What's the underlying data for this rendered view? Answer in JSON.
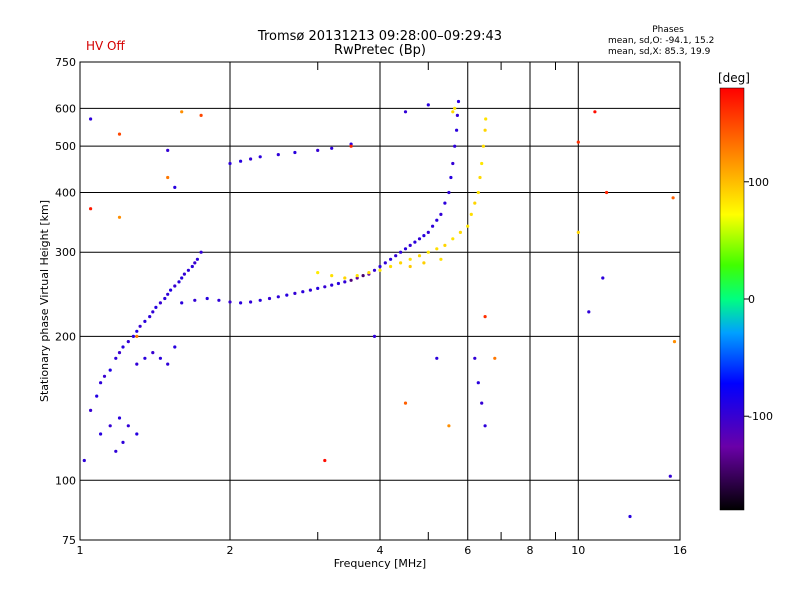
{
  "header": {
    "title_line1": "Tromsø 20131213 09:28:00–09:29:43",
    "title_line2": "RwPretec (Bp)",
    "hv_status": "HV Off",
    "hv_color": "#d40000"
  },
  "stats": {
    "heading": "Phases",
    "line_o": "mean, sd,O: -94.1, 15.2",
    "line_x": "mean, sd,X:  85.3, 19.9"
  },
  "colorbar": {
    "label": "[deg]",
    "min": -180,
    "max": 180,
    "ticks": [
      100,
      0,
      -100
    ]
  },
  "chart_data": {
    "type": "scatter",
    "title": "Tromsø 20131213 09:28:00–09:29:43",
    "subtitle": "RwPretec (Bp)",
    "xlabel": "Frequency [MHz]",
    "ylabel": "Stationary phase Virtual Height [km]",
    "xscale": "log",
    "yscale": "log",
    "xlim": [
      1,
      16
    ],
    "ylim": [
      75,
      750
    ],
    "x_ticks": [
      1,
      2,
      4,
      6,
      8,
      10,
      16
    ],
    "x_minor_ticks": [
      3,
      5,
      7,
      9
    ],
    "y_ticks": [
      75,
      100,
      200,
      300,
      400,
      500,
      600,
      750
    ],
    "grid": true,
    "color_by": "phase",
    "series": [
      {
        "points": [
          [
            1.02,
            110,
            -95
          ],
          [
            1.05,
            140,
            -100
          ],
          [
            1.08,
            150,
            -90
          ],
          [
            1.1,
            160,
            -95
          ],
          [
            1.12,
            165,
            -100
          ],
          [
            1.15,
            170,
            -88
          ],
          [
            1.18,
            180,
            -95
          ],
          [
            1.2,
            185,
            -102
          ],
          [
            1.22,
            190,
            -92
          ],
          [
            1.25,
            195,
            -98
          ],
          [
            1.28,
            200,
            -94
          ],
          [
            1.3,
            205,
            -90
          ],
          [
            1.32,
            210,
            -100
          ],
          [
            1.35,
            215,
            -94
          ],
          [
            1.38,
            220,
            -95
          ],
          [
            1.4,
            225,
            -97
          ],
          [
            1.42,
            230,
            -91
          ],
          [
            1.45,
            235,
            -99
          ],
          [
            1.48,
            240,
            -93
          ],
          [
            1.5,
            245,
            -96
          ],
          [
            1.52,
            250,
            -90
          ],
          [
            1.55,
            255,
            -100
          ],
          [
            1.58,
            260,
            -94
          ],
          [
            1.6,
            265,
            -92
          ],
          [
            1.62,
            270,
            -98
          ],
          [
            1.65,
            275,
            -95
          ],
          [
            1.68,
            280,
            -93
          ],
          [
            1.7,
            285,
            -101
          ],
          [
            1.72,
            290,
            -94
          ],
          [
            1.75,
            300,
            -97
          ],
          [
            1.1,
            125,
            -92
          ],
          [
            1.15,
            130,
            -99
          ],
          [
            1.2,
            135,
            -93
          ],
          [
            1.25,
            130,
            -97
          ],
          [
            1.3,
            125,
            -91
          ],
          [
            1.18,
            115,
            -96
          ],
          [
            1.22,
            120,
            -95
          ],
          [
            1.3,
            175,
            -97
          ],
          [
            1.35,
            180,
            -93
          ],
          [
            1.4,
            185,
            -100
          ],
          [
            1.45,
            180,
            -94
          ],
          [
            1.5,
            175,
            -96
          ],
          [
            1.55,
            190,
            -92
          ],
          [
            1.6,
            235,
            -94
          ],
          [
            1.7,
            238,
            -98
          ],
          [
            1.8,
            240,
            -92
          ],
          [
            1.9,
            238,
            -96
          ],
          [
            2.0,
            236,
            -100
          ],
          [
            2.1,
            235,
            -94
          ],
          [
            2.2,
            236,
            -97
          ],
          [
            2.3,
            238,
            -93
          ],
          [
            2.4,
            240,
            -99
          ],
          [
            2.5,
            242,
            -95
          ],
          [
            2.6,
            244,
            -92
          ],
          [
            2.7,
            246,
            -98
          ],
          [
            2.8,
            248,
            -94
          ],
          [
            2.9,
            250,
            -96
          ],
          [
            3.0,
            252,
            -91
          ],
          [
            3.1,
            254,
            -99
          ],
          [
            3.2,
            256,
            -95
          ],
          [
            3.3,
            258,
            -93
          ],
          [
            3.4,
            260,
            -97
          ],
          [
            3.5,
            262,
            -140
          ],
          [
            3.6,
            265,
            -130
          ],
          [
            3.7,
            268,
            -145
          ],
          [
            3.8,
            270,
            -120
          ],
          [
            3.9,
            275,
            -98
          ],
          [
            4.0,
            280,
            -94
          ],
          [
            4.1,
            285,
            -96
          ],
          [
            4.2,
            290,
            -92
          ],
          [
            4.3,
            295,
            -98
          ],
          [
            4.4,
            300,
            -95
          ],
          [
            4.5,
            305,
            -93
          ],
          [
            4.6,
            310,
            -99
          ],
          [
            4.7,
            315,
            -94
          ],
          [
            4.8,
            320,
            -96
          ],
          [
            4.9,
            325,
            -92
          ],
          [
            5.0,
            330,
            -98
          ],
          [
            5.1,
            340,
            -95
          ],
          [
            5.2,
            350,
            -93
          ],
          [
            5.3,
            360,
            -97
          ],
          [
            5.4,
            380,
            -94
          ],
          [
            5.5,
            400,
            -96
          ],
          [
            5.55,
            430,
            -92
          ],
          [
            5.6,
            460,
            -98
          ],
          [
            5.65,
            500,
            -95
          ],
          [
            5.7,
            540,
            -93
          ],
          [
            5.72,
            580,
            -97
          ],
          [
            5.75,
            620,
            -94
          ],
          [
            2.0,
            460,
            -95
          ],
          [
            2.1,
            465,
            -92
          ],
          [
            2.2,
            470,
            -98
          ],
          [
            2.3,
            475,
            -94
          ],
          [
            2.5,
            480,
            -96
          ],
          [
            2.7,
            485,
            -93
          ],
          [
            3.0,
            490,
            -99
          ],
          [
            3.2,
            495,
            -95
          ],
          [
            3.5,
            505,
            -92
          ],
          [
            1.05,
            570,
            -95
          ],
          [
            1.5,
            490,
            -98
          ],
          [
            1.55,
            410,
            -92
          ],
          [
            3.9,
            200,
            -96
          ],
          [
            5.2,
            180,
            -94
          ],
          [
            6.2,
            180,
            -97
          ],
          [
            6.3,
            160,
            -93
          ],
          [
            6.4,
            145,
            -99
          ],
          [
            6.5,
            130,
            -95
          ],
          [
            12.7,
            84,
            -92
          ],
          [
            15.3,
            102,
            -98
          ],
          [
            11.2,
            265,
            -94
          ],
          [
            10.5,
            225,
            -96
          ],
          [
            5.0,
            610,
            -93
          ],
          [
            4.5,
            590,
            -97
          ]
        ]
      },
      {
        "points": [
          [
            3.0,
            272,
            80
          ],
          [
            3.2,
            268,
            85
          ],
          [
            3.4,
            265,
            90
          ],
          [
            3.6,
            268,
            84
          ],
          [
            3.8,
            272,
            88
          ],
          [
            4.0,
            275,
            82
          ],
          [
            4.2,
            280,
            86
          ],
          [
            4.4,
            285,
            90
          ],
          [
            4.6,
            290,
            84
          ],
          [
            4.8,
            295,
            88
          ],
          [
            5.0,
            300,
            82
          ],
          [
            5.2,
            305,
            86
          ],
          [
            5.4,
            310,
            90
          ],
          [
            5.6,
            320,
            84
          ],
          [
            5.8,
            330,
            88
          ],
          [
            6.0,
            340,
            82
          ],
          [
            6.1,
            360,
            86
          ],
          [
            6.2,
            380,
            90
          ],
          [
            6.3,
            400,
            84
          ],
          [
            6.35,
            430,
            88
          ],
          [
            6.4,
            460,
            82
          ],
          [
            6.45,
            500,
            86
          ],
          [
            6.5,
            540,
            90
          ],
          [
            6.52,
            570,
            84
          ],
          [
            5.6,
            590,
            88
          ],
          [
            5.65,
            600,
            82
          ],
          [
            4.6,
            280,
            95
          ],
          [
            4.9,
            285,
            92
          ],
          [
            5.3,
            290,
            85
          ],
          [
            1.2,
            530,
            150
          ],
          [
            1.2,
            355,
            120
          ],
          [
            1.5,
            430,
            130
          ],
          [
            1.6,
            590,
            120
          ],
          [
            1.75,
            580,
            150
          ],
          [
            3.5,
            500,
            165
          ],
          [
            4.5,
            145,
            140
          ],
          [
            5.5,
            130,
            120
          ],
          [
            6.5,
            220,
            160
          ],
          [
            6.8,
            180,
            130
          ],
          [
            10.0,
            510,
            160
          ],
          [
            10.0,
            330,
            90
          ],
          [
            10.8,
            590,
            175
          ],
          [
            11.4,
            400,
            165
          ],
          [
            15.5,
            390,
            140
          ],
          [
            15.6,
            195,
            120
          ],
          [
            1.05,
            370,
            170
          ],
          [
            1.3,
            200,
            130
          ],
          [
            3.1,
            110,
            175
          ]
        ]
      }
    ]
  }
}
